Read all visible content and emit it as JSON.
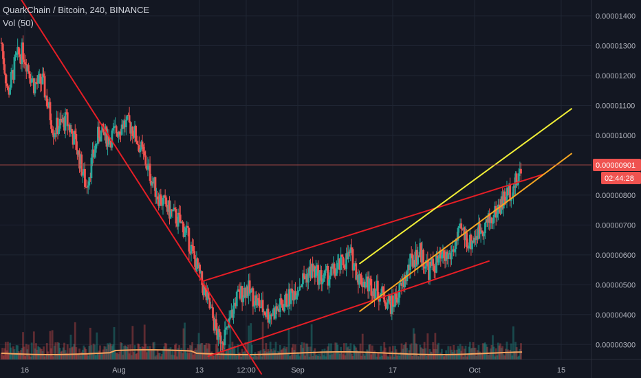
{
  "header": {
    "title": "QuarkChain / Bitcoin, 240, BINANCE",
    "indicator": "Vol (50)"
  },
  "colors": {
    "background": "#131722",
    "grid": "#1f2533",
    "text": "#b2b5be",
    "up": "#26a69a",
    "down": "#ef5350",
    "volume_ma": "#f4a460",
    "trend_red": "#e61e26",
    "channel_yellow": "#f1ef37",
    "channel_orange": "#f5a623",
    "price_line": "#c0504d",
    "price_tag": "#ef5350"
  },
  "chart_data": {
    "type": "candlestick",
    "title": "QuarkChain / Bitcoin, 240, BINANCE",
    "ylim": [
      2.5e-06,
      1.43e-05
    ],
    "y_ticks": [
      "0.00001400",
      "0.00001300",
      "0.00001200",
      "0.00001100",
      "0.00001000",
      "0.00000901",
      "0.00000800",
      "0.00000700",
      "0.00000600",
      "0.00000500",
      "0.00000400",
      "0.00000300"
    ],
    "x_ticks": [
      "16",
      "Aug",
      "13",
      "12:00",
      "Sep",
      "17",
      "Oct",
      "15"
    ],
    "last_price": "0.00000901",
    "countdown": "02:44:28",
    "price_path": [
      {
        "t": 0.0,
        "p": 1.31e-05
      },
      {
        "t": 0.3,
        "p": 1.14e-05
      },
      {
        "t": 0.7,
        "p": 1.26e-05
      },
      {
        "t": 1.0,
        "p": 1.28e-05
      },
      {
        "t": 1.5,
        "p": 1.17e-05
      },
      {
        "t": 1.9,
        "p": 1.18e-05
      },
      {
        "t": 2.4,
        "p": 1.02e-05
      },
      {
        "t": 3.0,
        "p": 1.05e-05
      },
      {
        "t": 3.4,
        "p": 9.8e-06
      },
      {
        "t": 3.9,
        "p": 8.3e-06
      },
      {
        "t": 4.5,
        "p": 1.01e-05
      },
      {
        "t": 5.0,
        "p": 9.9e-06
      },
      {
        "t": 5.6,
        "p": 1.04e-05
      },
      {
        "t": 6.0,
        "p": 1.03e-05
      },
      {
        "t": 6.4,
        "p": 9.6e-06
      },
      {
        "t": 6.8,
        "p": 8.8e-06
      },
      {
        "t": 7.2,
        "p": 8e-06
      },
      {
        "t": 7.7,
        "p": 7.5e-06
      },
      {
        "t": 8.1,
        "p": 7.2e-06
      },
      {
        "t": 8.5,
        "p": 6.8e-06
      },
      {
        "t": 9.0,
        "p": 5.6e-06
      },
      {
        "t": 9.3,
        "p": 4.9e-06
      },
      {
        "t": 9.7,
        "p": 4e-06
      },
      {
        "t": 10.0,
        "p": 3.2e-06
      },
      {
        "t": 10.4,
        "p": 3.4e-06
      },
      {
        "t": 10.8,
        "p": 4.5e-06
      },
      {
        "t": 11.3,
        "p": 4.9e-06
      },
      {
        "t": 11.8,
        "p": 4.4e-06
      },
      {
        "t": 12.3,
        "p": 4e-06
      },
      {
        "t": 12.8,
        "p": 4.2e-06
      },
      {
        "t": 13.3,
        "p": 4.6e-06
      },
      {
        "t": 13.8,
        "p": 5.1e-06
      },
      {
        "t": 14.3,
        "p": 5.5e-06
      },
      {
        "t": 14.8,
        "p": 5.2e-06
      },
      {
        "t": 15.3,
        "p": 5.4e-06
      },
      {
        "t": 15.7,
        "p": 5.7e-06
      },
      {
        "t": 16.1,
        "p": 6e-06
      },
      {
        "t": 16.5,
        "p": 5.2e-06
      },
      {
        "t": 17.0,
        "p": 5e-06
      },
      {
        "t": 17.5,
        "p": 4.7e-06
      },
      {
        "t": 18.0,
        "p": 4.3e-06
      },
      {
        "t": 18.5,
        "p": 5e-06
      },
      {
        "t": 18.9,
        "p": 5.8e-06
      },
      {
        "t": 19.3,
        "p": 6.1e-06
      },
      {
        "t": 19.7,
        "p": 5.5e-06
      },
      {
        "t": 20.2,
        "p": 5.8e-06
      },
      {
        "t": 20.7,
        "p": 6e-06
      },
      {
        "t": 21.2,
        "p": 6.8e-06
      },
      {
        "t": 21.6,
        "p": 6.4e-06
      },
      {
        "t": 22.1,
        "p": 6.9e-06
      },
      {
        "t": 22.6,
        "p": 7.2e-06
      },
      {
        "t": 23.1,
        "p": 7.8e-06
      },
      {
        "t": 23.5,
        "p": 8.2e-06
      },
      {
        "t": 23.8,
        "p": 8.5e-06
      },
      {
        "t": 24.0,
        "p": 9e-06
      }
    ],
    "drawings": [
      {
        "color": "trend_red",
        "t1": 0.6,
        "p1": 1.49e-05,
        "t2": 12.0,
        "p2": 2e-06
      },
      {
        "color": "trend_red",
        "t1": 9.2,
        "p1": 5.1e-06,
        "t2": 25.0,
        "p2": 8.7e-06
      },
      {
        "color": "trend_red",
        "t1": 9.5,
        "p1": 2.6e-06,
        "t2": 22.5,
        "p2": 5.8e-06
      },
      {
        "color": "channel_yellow",
        "t1": 16.5,
        "p1": 5.7e-06,
        "t2": 26.3,
        "p2": 1.09e-05
      },
      {
        "color": "channel_orange",
        "t1": 16.5,
        "p1": 4.1e-06,
        "t2": 26.3,
        "p2": 9.4e-06
      }
    ]
  }
}
